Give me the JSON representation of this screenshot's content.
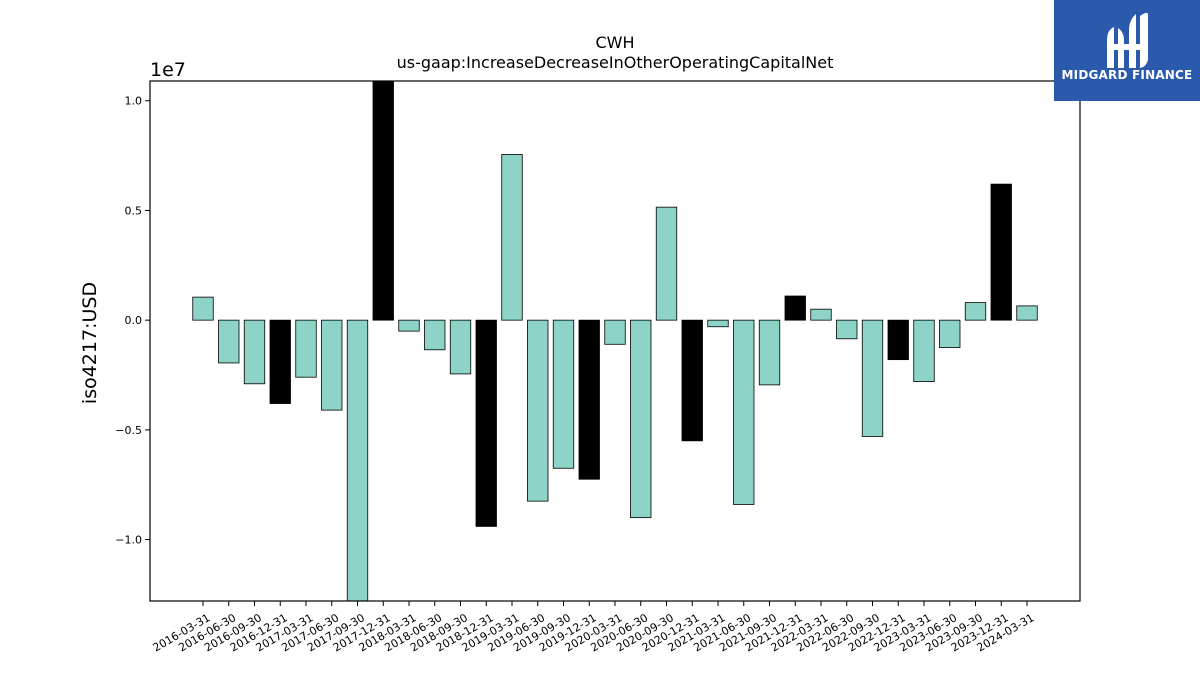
{
  "logo": {
    "text": "MIDGARD FINANCE",
    "background": "#2b5aad"
  },
  "chart_data": {
    "type": "bar",
    "title": "CWH",
    "subtitle": "us-gaap:IncreaseDecreaseInOtherOperatingCapitalNet",
    "ylabel": "iso4217:USD",
    "xlabel": "",
    "scale_label": "1e7",
    "ylim": [
      -12800000,
      10900000
    ],
    "yticks": [
      -10000000,
      -5000000,
      0,
      5000000,
      10000000
    ],
    "ytick_labels": [
      "−1.0",
      "−0.5",
      "0.0",
      "0.5",
      "1.0"
    ],
    "colors": {
      "regular": "#8dd3c7",
      "q4": "#000000"
    },
    "categories": [
      "2016-03-31",
      "2016-06-30",
      "2016-09-30",
      "2016-12-31",
      "2017-03-31",
      "2017-06-30",
      "2017-09-30",
      "2017-12-31",
      "2018-03-31",
      "2018-06-30",
      "2018-09-30",
      "2018-12-31",
      "2019-03-31",
      "2019-06-30",
      "2019-09-30",
      "2019-12-31",
      "2020-03-31",
      "2020-06-30",
      "2020-09-30",
      "2020-12-31",
      "2021-03-31",
      "2021-06-30",
      "2021-09-30",
      "2021-12-31",
      "2022-03-31",
      "2022-06-30",
      "2022-09-30",
      "2022-12-31",
      "2023-03-31",
      "2023-06-30",
      "2023-09-30",
      "2023-12-31",
      "2024-03-31"
    ],
    "values": [
      1050000,
      -1950000,
      -2900000,
      -3800000,
      -2600000,
      -4100000,
      -12800000,
      10900000,
      -500000,
      -1350000,
      -2450000,
      -9400000,
      7550000,
      -8250000,
      -6750000,
      -7250000,
      -1100000,
      -9000000,
      5150000,
      -5500000,
      -300000,
      -8400000,
      -2950000,
      1100000,
      500000,
      -850000,
      -5300000,
      -1800000,
      -2800000,
      -1250000,
      800000,
      6200000,
      650000
    ],
    "highlight": [
      false,
      false,
      false,
      true,
      false,
      false,
      false,
      true,
      false,
      false,
      false,
      true,
      false,
      false,
      false,
      true,
      false,
      false,
      false,
      true,
      false,
      false,
      false,
      true,
      false,
      false,
      false,
      true,
      false,
      false,
      false,
      true,
      false
    ],
    "grid": false,
    "legend": "none"
  }
}
